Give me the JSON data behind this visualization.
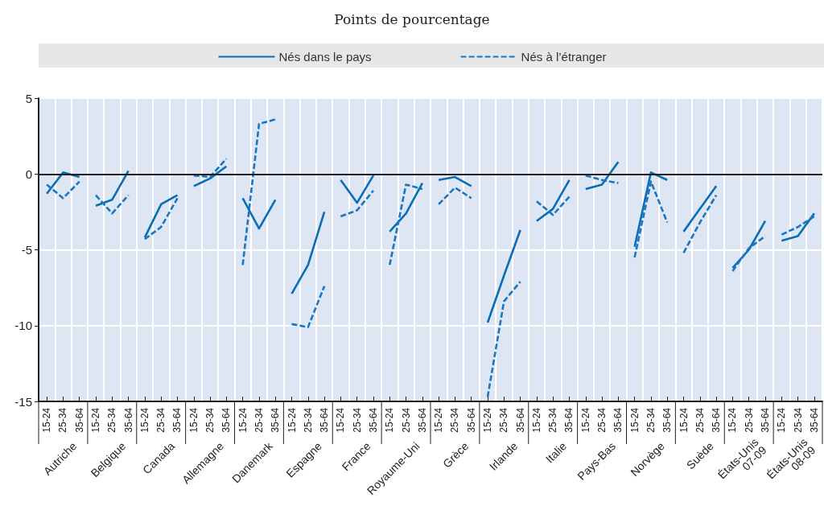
{
  "chart_data": {
    "type": "line",
    "subtitle": "Points de pourcentage",
    "categories": [
      "15-24",
      "25-34",
      "35-64",
      "15-24",
      "25-34",
      "35-64",
      "15-24",
      "25-34",
      "35-64",
      "15-24",
      "25-34",
      "35-64",
      "15-24",
      "25-34",
      "35-64",
      "15-24",
      "25-34",
      "35-64",
      "15-24",
      "25-34",
      "35-64",
      "15-24",
      "25-34",
      "35-64",
      "15-24",
      "25-34",
      "35-64",
      "15-24",
      "25-34",
      "35-64",
      "15-24",
      "25-34",
      "35-64",
      "15-24",
      "25-34",
      "35-64",
      "15-24",
      "25-34",
      "35-64",
      "15-24",
      "25-34",
      "35-64",
      "15-24",
      "25-34",
      "35-64",
      "15-24",
      "25-34",
      "35-64"
    ],
    "annotations": [
      "Autriche",
      "Belgique",
      "Canada",
      "Allemagne",
      "Danemark",
      "Espagne",
      "France",
      "Royaume-Uni",
      "Grèce",
      "Irlande",
      "Italie",
      "Pays-Bas",
      "Norvège",
      "Suède",
      "États-Unis 07-09",
      "États-Unis 08-09"
    ],
    "series": [
      {
        "name": "Nés dans le pays",
        "color": "#0a6eb4",
        "line_style": "solid",
        "values": [
          -1.3,
          0.1,
          -0.2,
          -2.1,
          -1.7,
          0.2,
          -4.2,
          -2.0,
          -1.4,
          -0.8,
          -0.3,
          0.5,
          -1.6,
          -3.6,
          -1.7,
          -7.9,
          -6.0,
          -2.5,
          -0.4,
          -1.9,
          -0.1,
          -3.8,
          -2.6,
          -0.6,
          -0.4,
          -0.2,
          -0.8,
          -9.8,
          -6.7,
          -3.7,
          -3.1,
          -2.3,
          -0.4,
          -1.0,
          -0.7,
          0.8,
          -4.8,
          0.1,
          -0.4,
          -3.8,
          -2.3,
          -0.8,
          -6.2,
          -5.0,
          -3.1,
          -4.4,
          -4.1,
          -2.6
        ]
      },
      {
        "name": "Nés à l’étranger",
        "color": "#1877c0",
        "line_style": "dashed",
        "values": [
          -0.7,
          -1.6,
          -0.5,
          -1.4,
          -2.6,
          -1.4,
          -4.3,
          -3.5,
          -1.6,
          -0.1,
          -0.2,
          1.0,
          -6.0,
          3.3,
          3.6,
          -9.9,
          -10.1,
          -7.4,
          -2.8,
          -2.4,
          -1.1,
          -6.0,
          -0.7,
          -1.0,
          -2.0,
          -0.9,
          -1.6,
          -14.7,
          -8.4,
          -7.1,
          -1.8,
          -2.7,
          -1.5,
          -0.1,
          -0.4,
          -0.6,
          -5.5,
          -0.5,
          -3.2,
          -5.2,
          -3.2,
          -1.4,
          -6.4,
          -4.9,
          -4.1,
          -4.0,
          -3.5,
          -2.8
        ]
      }
    ],
    "ylim": [
      -15,
      5
    ],
    "yticks": [
      -15,
      -10,
      -5,
      0,
      5
    ],
    "ref_lines": [
      {
        "axis": "y",
        "value": 0,
        "color": "#231f20"
      }
    ],
    "grid": true,
    "legend": "top",
    "marker": "none"
  }
}
